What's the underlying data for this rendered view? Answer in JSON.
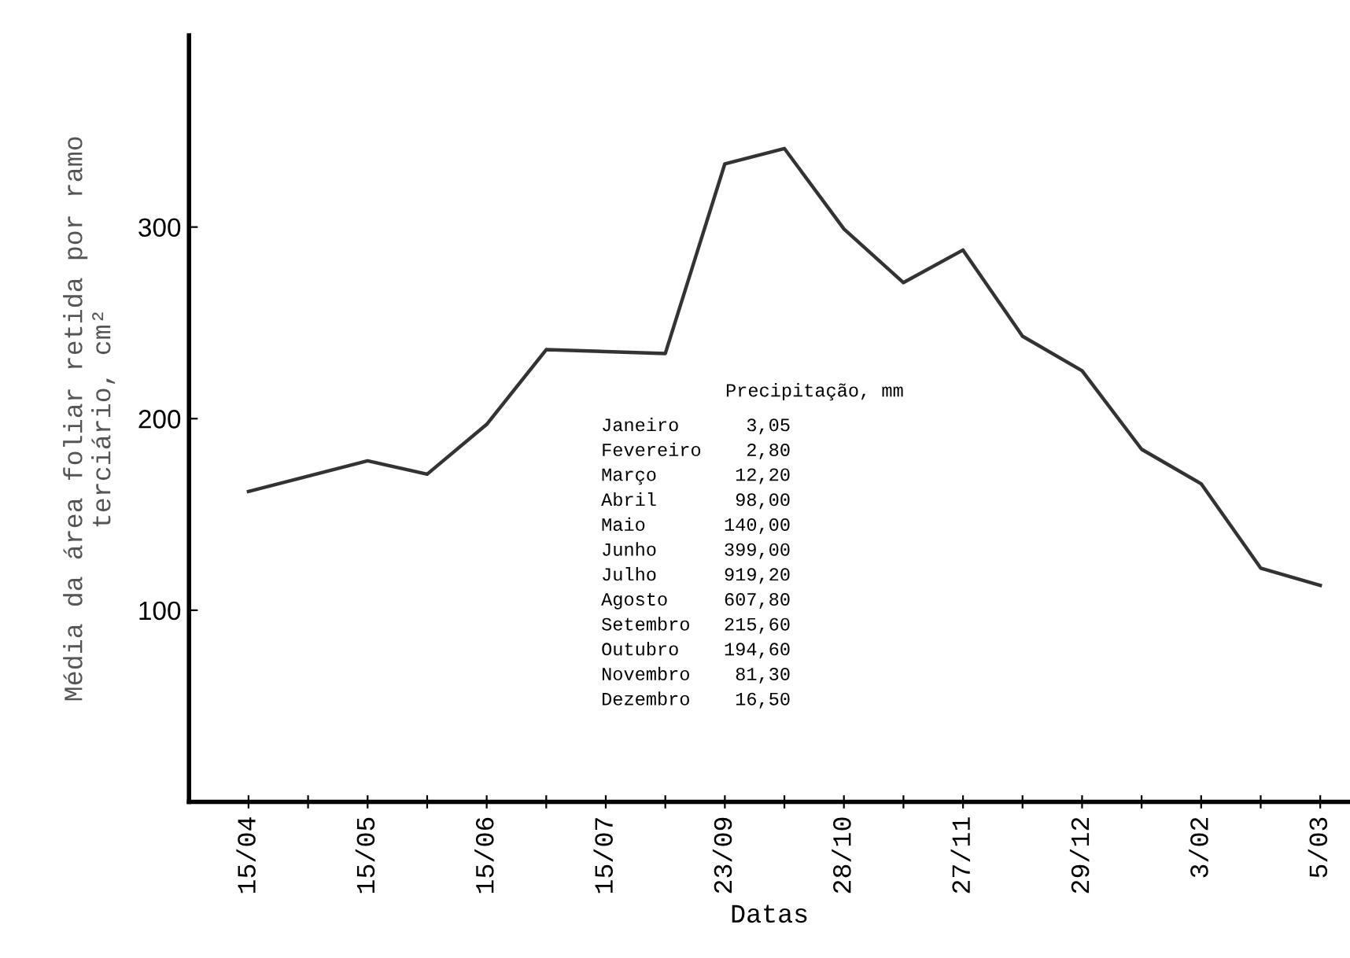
{
  "chart_data": {
    "type": "line",
    "xlabel": "Datas",
    "ylabel": "Média da área foliar retida por ramo\nterciário, cm²",
    "categories": [
      "15/04",
      null,
      "15/05",
      null,
      "15/06",
      null,
      "15/07",
      null,
      "23/09",
      null,
      "28/10",
      null,
      "27/11",
      null,
      "29/12",
      null,
      "3/02",
      null,
      "5/03"
    ],
    "series": [
      {
        "color": "#333333",
        "values": [
          162,
          170,
          178,
          171,
          197,
          236,
          235,
          234,
          333,
          341,
          299,
          271,
          288,
          243,
          225,
          184,
          166,
          122,
          113
        ]
      }
    ],
    "ylim": [
      0,
      400
    ],
    "yticks": [
      100,
      200,
      300
    ],
    "grid": false,
    "legend": false,
    "marker": "none",
    "line_style": "solid",
    "annotations": [
      "Precipitação, mm",
      "Janeiro      3,05",
      "Fevereiro    2,80",
      "Março       12,20",
      "Abril       98,00",
      "Maio       140,00",
      "Junho      399,00",
      "Julho      919,20",
      "Agosto     607,80",
      "Setembro   215,60",
      "Outubro    194,60",
      "Novembro    81,30",
      "Dezembro    16,50"
    ]
  }
}
